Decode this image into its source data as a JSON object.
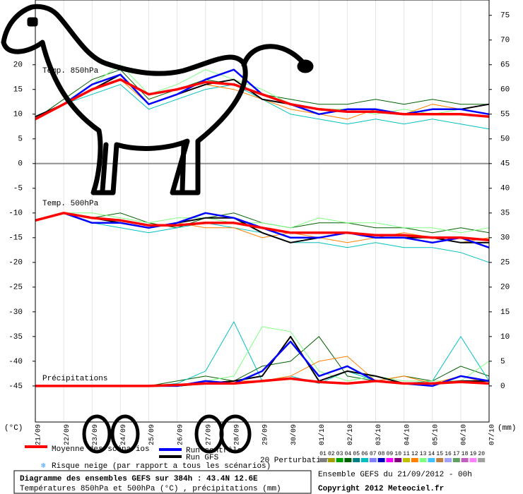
{
  "chart_data": {
    "type": "line",
    "categories": [
      "21/09",
      "22/09",
      "23/09",
      "24/09",
      "25/09",
      "26/09",
      "27/09",
      "28/09",
      "29/09",
      "30/09",
      "01/10",
      "02/10",
      "03/10",
      "04/10",
      "05/10",
      "06/10",
      "07/10"
    ],
    "ylim": [
      -52.3,
      33.1
    ],
    "yticks": [
      -45,
      -40,
      -35,
      -30,
      -25,
      -20,
      -15,
      -10,
      -5,
      0,
      5,
      10,
      15,
      20
    ],
    "y2lim": [
      -7.3,
      78.1
    ],
    "y2ticks": [
      0,
      5,
      10,
      15,
      20,
      25,
      30,
      35,
      40,
      45,
      50,
      55,
      60,
      65,
      70,
      75
    ],
    "ylabel": "(°C)",
    "y2label": "(mm)",
    "grid": true,
    "legend": {
      "mean": {
        "label": "Moyenne des scénarios",
        "color": "#ff0000"
      },
      "control": {
        "label": "Run contrôle",
        "color": "#0000ff"
      },
      "gfs": {
        "label": "Run GFS",
        "color": "#000000"
      }
    },
    "snow_label": "Risque neige (par rapport a tous les scénarios)",
    "perturbations_label": "20 Perturbations",
    "perturbation_colors": [
      {
        "label": "01",
        "color": "#808080"
      },
      {
        "label": "02",
        "color": "#a0a000"
      },
      {
        "label": "03",
        "color": "#00a000"
      },
      {
        "label": "04",
        "color": "#006000"
      },
      {
        "label": "05",
        "color": "#008080"
      },
      {
        "label": "06",
        "color": "#00c0c0"
      },
      {
        "label": "07",
        "color": "#8080ff"
      },
      {
        "label": "08",
        "color": "#0000c0"
      },
      {
        "label": "09",
        "color": "#ff00ff"
      },
      {
        "label": "10",
        "color": "#800080"
      },
      {
        "label": "11",
        "color": "#c0c000"
      },
      {
        "label": "12",
        "color": "#ff8000"
      },
      {
        "label": "13",
        "color": "#80ff80"
      },
      {
        "label": "14",
        "color": "#40c0ff"
      },
      {
        "label": "15",
        "color": "#c08040"
      },
      {
        "label": "16",
        "color": "#a0a0ff"
      },
      {
        "label": "17",
        "color": "#60a060"
      },
      {
        "label": "18",
        "color": "#c060c0"
      },
      {
        "label": "19",
        "color": "#ff80ff"
      },
      {
        "label": "20",
        "color": "#a0a0a0"
      }
    ],
    "panels": [
      {
        "label": "Temp. 850hPa",
        "axis": "y",
        "mean": [
          9,
          12,
          15,
          17,
          14,
          15,
          16.5,
          16,
          14,
          12,
          11,
          10.5,
          10.5,
          10,
          10,
          10,
          9.5
        ],
        "control": [
          9,
          12,
          16,
          18,
          12,
          14,
          17,
          19,
          14,
          12,
          10,
          11,
          11,
          10,
          11,
          11,
          10
        ],
        "gfs": [
          9.5,
          12,
          15,
          18,
          12,
          14,
          16,
          17,
          13,
          12,
          10,
          11,
          11,
          10,
          11,
          11,
          12
        ],
        "perturbations": [
          {
            "color": "#006000",
            "values": [
              9,
              13,
              17,
              19,
              13,
              15,
              17,
              16,
              14,
              13,
              12,
              12,
              13,
              12,
              13,
              12,
              12
            ]
          },
          {
            "color": "#00c0c0",
            "values": [
              9,
              12,
              14,
              16,
              11,
              13,
              15,
              16,
              13,
              10,
              9,
              8,
              9,
              8,
              9,
              8,
              7
            ]
          },
          {
            "color": "#80ff80",
            "values": [
              9,
              12,
              16,
              20,
              14,
              16,
              19,
              17,
              15,
              12,
              11,
              11,
              10,
              11,
              10,
              11,
              10
            ]
          },
          {
            "color": "#ff8000",
            "values": [
              9,
              12,
              15,
              17,
              12,
              14,
              16,
              15,
              13,
              11,
              10,
              9,
              11,
              10,
              12,
              11,
              12
            ]
          }
        ]
      },
      {
        "label": "Temp. 500hPa",
        "axis": "y",
        "mean": [
          -11.5,
          -10,
          -11,
          -11.5,
          -12.5,
          -12.5,
          -12,
          -12,
          -13,
          -14,
          -14,
          -14,
          -14.5,
          -14.5,
          -15,
          -15,
          -15.5
        ],
        "control": [
          -11.5,
          -10,
          -12,
          -12,
          -13,
          -12,
          -10,
          -11,
          -13,
          -15,
          -15,
          -14,
          -15,
          -15,
          -16,
          -15,
          -17
        ],
        "gfs": [
          -11.5,
          -10,
          -11,
          -12,
          -13,
          -12,
          -11,
          -11,
          -14,
          -16,
          -15,
          -14,
          -15,
          -15,
          -15,
          -16,
          -16
        ],
        "perturbations": [
          {
            "color": "#006000",
            "values": [
              -11.5,
              -10,
              -11,
              -10,
              -12,
              -13,
              -11,
              -10,
              -12,
              -13,
              -12,
              -12,
              -13,
              -13,
              -14,
              -13,
              -14
            ]
          },
          {
            "color": "#00c0c0",
            "values": [
              -11.5,
              -10,
              -12,
              -13,
              -14,
              -13,
              -12,
              -13,
              -14,
              -16,
              -16,
              -17,
              -16,
              -17,
              -17,
              -18,
              -20
            ]
          },
          {
            "color": "#80ff80",
            "values": [
              -11.5,
              -10,
              -10,
              -11,
              -12,
              -11,
              -11,
              -12,
              -12,
              -13,
              -11,
              -12,
              -12,
              -13,
              -13,
              -14,
              -13
            ]
          },
          {
            "color": "#ff8000",
            "values": [
              -11.5,
              -10,
              -11,
              -12,
              -13,
              -12,
              -13,
              -13,
              -15,
              -14,
              -15,
              -16,
              -15,
              -14,
              -15,
              -16,
              -15
            ]
          }
        ]
      },
      {
        "label": "Précipitations",
        "axis": "y2",
        "mean": [
          0,
          0,
          0,
          0,
          0,
          0.2,
          0.5,
          0.5,
          1,
          1.5,
          0.8,
          0.5,
          1,
          0.5,
          0.5,
          0.8,
          0.5
        ],
        "control": [
          0,
          0,
          0,
          0,
          0,
          0,
          1,
          0.5,
          3,
          9,
          2,
          4,
          1,
          0.5,
          0,
          2,
          1
        ],
        "gfs": [
          0,
          0,
          0,
          0,
          0,
          0,
          0.5,
          1,
          2,
          10,
          1,
          3,
          2,
          0.5,
          0.5,
          1,
          1
        ],
        "perturbations": [
          {
            "color": "#006000",
            "values": [
              0,
              0,
              0,
              0,
              0,
              1,
              2,
              1,
              4,
              5,
              10,
              2,
              1,
              2,
              1,
              4,
              2
            ]
          },
          {
            "color": "#00c0c0",
            "values": [
              0,
              0,
              0,
              0,
              0,
              0.5,
              3,
              13,
              1,
              2,
              0.5,
              3,
              1,
              0.5,
              1,
              10,
              1
            ]
          },
          {
            "color": "#80ff80",
            "values": [
              0,
              0,
              0,
              0,
              0,
              0,
              1,
              2,
              12,
              11,
              3,
              1,
              2,
              1,
              1,
              1,
              5
            ]
          },
          {
            "color": "#ff8000",
            "values": [
              0,
              0,
              0,
              0,
              0,
              0,
              0.5,
              1,
              1,
              2,
              5,
              6,
              1,
              2,
              0.5,
              2,
              0.5
            ]
          }
        ]
      }
    ],
    "footer": {
      "title": "Diagramme des ensembles GEFS sur 384h : 43.4N 12.6E",
      "subtitle": "Températures 850hPa et 500hPa (°C) , précipitations (mm)",
      "run": "Ensemble GEFS du 21/09/2012 - 00h",
      "copyright": "Copyright 2012 Meteociel.fr"
    }
  }
}
